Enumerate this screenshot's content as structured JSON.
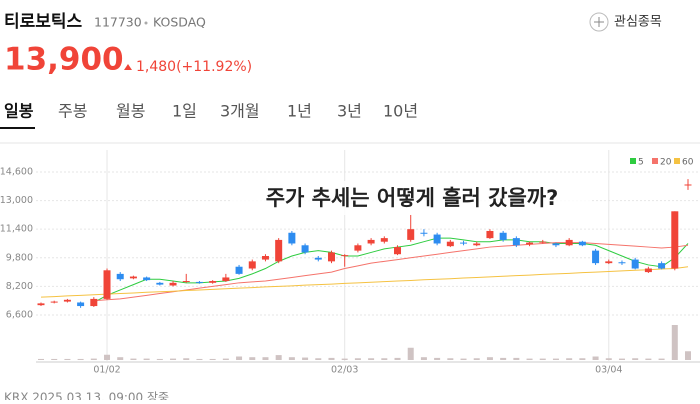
{
  "header": {
    "name": "티로보틱스",
    "code": "117730",
    "market": "KOSDAQ",
    "watch": "관심종목",
    "price": "13,900",
    "change": "1,480(+11.92%)"
  },
  "tabs": [
    "일봉",
    "주봉",
    "월봉",
    "1일",
    "3개월",
    "1년",
    "3년",
    "10년"
  ],
  "caption": "주가 추세는 어떻게 흘러 갔을까?",
  "footer": "KRX 2025.03.13. 09:00 장중",
  "chart_data": {
    "type": "candlestick",
    "up_color": "#f04438",
    "down_color": "#2d8cf0",
    "volume_color": "#cfc3c3",
    "categories": [
      null,
      null,
      null,
      null,
      null,
      "01/02",
      null,
      null,
      null,
      null,
      null,
      null,
      null,
      null,
      null,
      null,
      null,
      null,
      null,
      null,
      null,
      null,
      null,
      "02/03",
      null,
      null,
      null,
      null,
      null,
      null,
      null,
      null,
      null,
      null,
      null,
      null,
      null,
      null,
      null,
      null,
      null,
      null,
      null,
      "03/04",
      null,
      null,
      null,
      null,
      null,
      null
    ],
    "open": [
      7150,
      7300,
      7350,
      7300,
      7100,
      7500,
      8900,
      8650,
      8700,
      8400,
      8250,
      8500,
      8450,
      8400,
      8500,
      9300,
      9200,
      9700,
      9600,
      11200,
      10500,
      9800,
      9600,
      9950,
      10200,
      10600,
      10700,
      10000,
      10800,
      11200,
      11100,
      10450,
      10650,
      10500,
      10900,
      11200,
      10900,
      10550,
      10650,
      10600,
      10500,
      10700,
      10200,
      9500,
      9550,
      9700,
      9000,
      9500,
      9200,
      13900
    ],
    "high": [
      7300,
      7400,
      7500,
      7350,
      7600,
      9200,
      9000,
      8800,
      8750,
      8450,
      8500,
      8900,
      8500,
      8550,
      8900,
      9400,
      9700,
      10000,
      10900,
      11300,
      10600,
      9900,
      10200,
      10000,
      10600,
      10900,
      11000,
      10500,
      12200,
      11400,
      11200,
      10800,
      10750,
      10700,
      11400,
      11300,
      11000,
      10700,
      10800,
      10650,
      10900,
      10750,
      10300,
      9700,
      9650,
      9800,
      9300,
      9600,
      12400,
      14200
    ],
    "low": [
      7100,
      7250,
      7300,
      7000,
      7050,
      7450,
      8500,
      8600,
      8500,
      8250,
      8200,
      8400,
      8350,
      8350,
      8450,
      8850,
      9100,
      9600,
      9500,
      10500,
      10000,
      9600,
      9500,
      9300,
      10100,
      10500,
      10600,
      9950,
      10700,
      11000,
      10500,
      10400,
      10500,
      10450,
      10850,
      10700,
      10400,
      10450,
      10600,
      10400,
      10450,
      10450,
      9400,
      9450,
      9400,
      9150,
      8950,
      9150,
      9100,
      13600
    ],
    "close": [
      7250,
      7350,
      7450,
      7100,
      7500,
      9100,
      8600,
      8750,
      8550,
      8300,
      8400,
      8500,
      8400,
      8500,
      8700,
      8900,
      9600,
      9900,
      10800,
      10600,
      10100,
      9700,
      10100,
      9950,
      10500,
      10800,
      10900,
      10400,
      11400,
      11150,
      10600,
      10700,
      10600,
      10600,
      11300,
      10800,
      10500,
      10650,
      10700,
      10500,
      10800,
      10500,
      9500,
      9600,
      9500,
      9200,
      9200,
      9200,
      12400,
      13900
    ],
    "volume": [
      3,
      3,
      3,
      3,
      4,
      15,
      8,
      4,
      4,
      3,
      4,
      5,
      3,
      3,
      4,
      10,
      8,
      8,
      14,
      8,
      7,
      5,
      6,
      4,
      5,
      5,
      5,
      6,
      35,
      8,
      6,
      5,
      4,
      5,
      8,
      6,
      6,
      4,
      4,
      4,
      5,
      5,
      10,
      5,
      4,
      5,
      4,
      4,
      100,
      25
    ],
    "vlim": [
      0,
      100
    ],
    "ma": [
      {
        "name": "5",
        "color": "#2ecc40",
        "values": [
          null,
          null,
          null,
          null,
          7300,
          7700,
          8000,
          8300,
          8600,
          8600,
          8500,
          8400,
          8400,
          8450,
          8500,
          8650,
          8900,
          9200,
          9600,
          9900,
          10100,
          10200,
          10100,
          9900,
          9900,
          10100,
          10300,
          10400,
          10500,
          10700,
          10900,
          10900,
          10800,
          10700,
          10700,
          10800,
          10800,
          10700,
          10700,
          10600,
          10600,
          10600,
          10500,
          10200,
          9900,
          9600,
          9400,
          9300,
          9800,
          10600
        ]
      },
      {
        "name": "20",
        "color": "#f5736b",
        "values": [
          null,
          null,
          null,
          null,
          7400,
          7450,
          7500,
          7600,
          7700,
          7800,
          7900,
          8000,
          8100,
          8200,
          8300,
          8400,
          8450,
          8500,
          8600,
          8700,
          8800,
          8900,
          9000,
          9200,
          9350,
          9500,
          9600,
          9700,
          9800,
          9900,
          10000,
          10100,
          10200,
          10300,
          10400,
          10450,
          10500,
          10550,
          10600,
          10650,
          10650,
          10650,
          10600,
          10550,
          10500,
          10450,
          10400,
          10350,
          10400,
          10500
        ]
      },
      {
        "name": "60",
        "color": "#f5c242",
        "values": [
          7600,
          7630,
          7670,
          7700,
          7730,
          7770,
          7800,
          7830,
          7870,
          7900,
          7930,
          7970,
          8000,
          8030,
          8070,
          8100,
          8130,
          8170,
          8200,
          8230,
          8270,
          8300,
          8330,
          8370,
          8400,
          8430,
          8470,
          8500,
          8530,
          8570,
          8600,
          8630,
          8670,
          8700,
          8730,
          8770,
          8800,
          8830,
          8870,
          8900,
          8930,
          8970,
          9000,
          9030,
          9070,
          9100,
          9130,
          9170,
          9200,
          9300
        ]
      }
    ],
    "ylim": [
      6320,
      15270
    ],
    "yticks": [
      {
        "value": 6600,
        "label": "6,600"
      },
      {
        "value": 8200,
        "label": "8,200"
      },
      {
        "value": 9800,
        "label": "9,800"
      },
      {
        "value": 11400,
        "label": "11,400"
      },
      {
        "value": 13000,
        "label": "13,000"
      },
      {
        "value": 14600,
        "label": "14,600"
      }
    ],
    "grid": true
  }
}
